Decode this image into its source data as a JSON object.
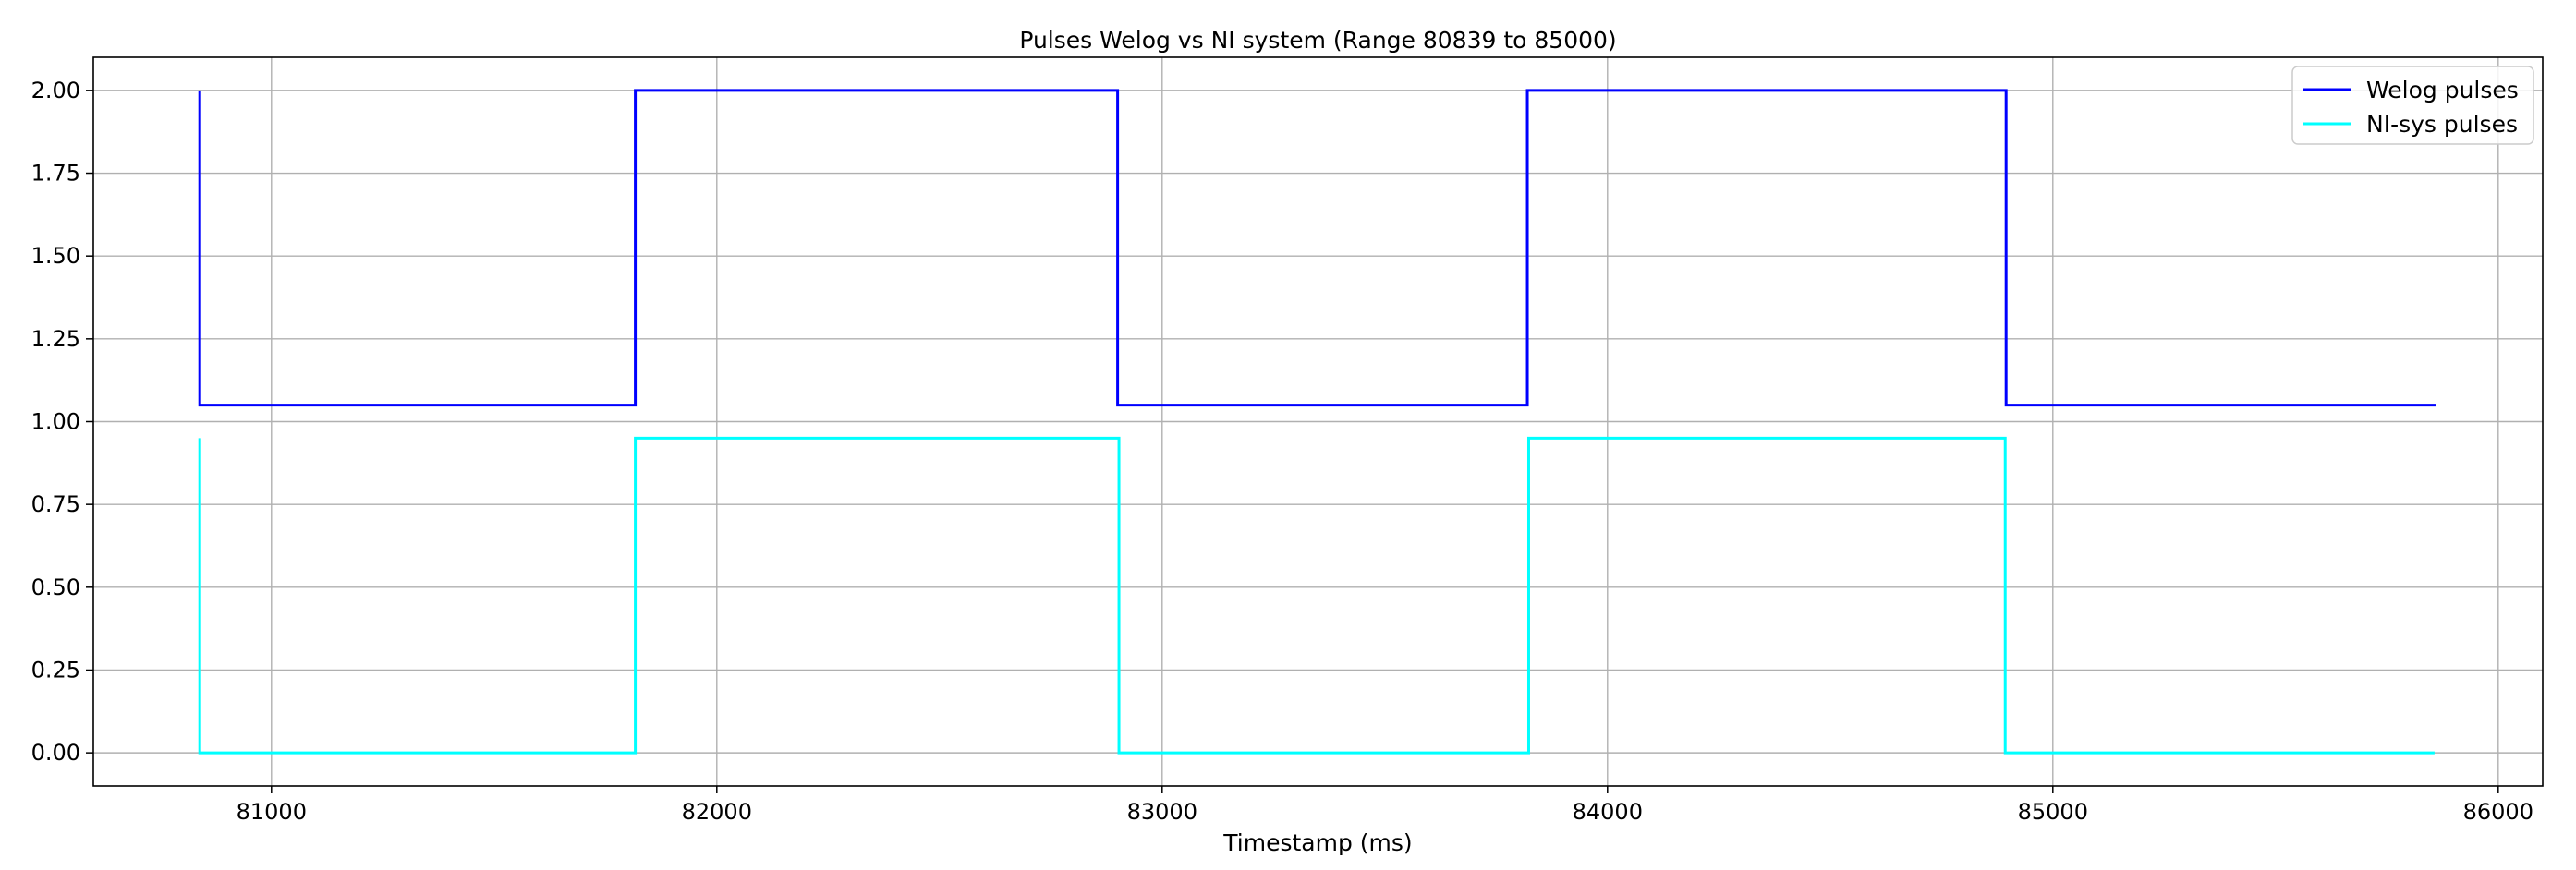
{
  "chart_data": {
    "type": "line",
    "title": "Pulses Welog vs NI system (Range 80839 to 85000)",
    "xlabel": "Timestamp (ms)",
    "ylabel": "",
    "xlim": [
      80600,
      86100
    ],
    "ylim": [
      -0.1,
      2.1
    ],
    "x_ticks": [
      81000,
      82000,
      83000,
      84000,
      85000,
      86000
    ],
    "y_ticks": [
      0.0,
      0.25,
      0.5,
      0.75,
      1.0,
      1.25,
      1.5,
      1.75,
      2.0
    ],
    "x_tick_labels": [
      "81000",
      "82000",
      "83000",
      "84000",
      "85000",
      "86000"
    ],
    "y_tick_labels": [
      "0.00",
      "0.25",
      "0.50",
      "0.75",
      "1.00",
      "1.25",
      "1.50",
      "1.75",
      "2.00"
    ],
    "grid": true,
    "legend_position": "top-right",
    "series": [
      {
        "name": "Welog pulses",
        "color": "#0000ff",
        "step": true,
        "x": [
          80839,
          80839,
          81817,
          81817,
          82900,
          82900,
          83820,
          83820,
          84895,
          84895,
          85860
        ],
        "y": [
          2.0,
          1.05,
          1.05,
          2.0,
          2.0,
          1.05,
          1.05,
          2.0,
          2.0,
          1.05,
          1.05
        ]
      },
      {
        "name": "NI-sys pulses",
        "color": "#00ffff",
        "step": true,
        "x": [
          80839,
          80839,
          81817,
          81817,
          82903,
          82903,
          83823,
          83823,
          84893,
          84893,
          85857
        ],
        "y": [
          0.95,
          0.0,
          0.0,
          0.95,
          0.95,
          0.0,
          0.0,
          0.95,
          0.95,
          0.0,
          0.0
        ]
      }
    ]
  }
}
